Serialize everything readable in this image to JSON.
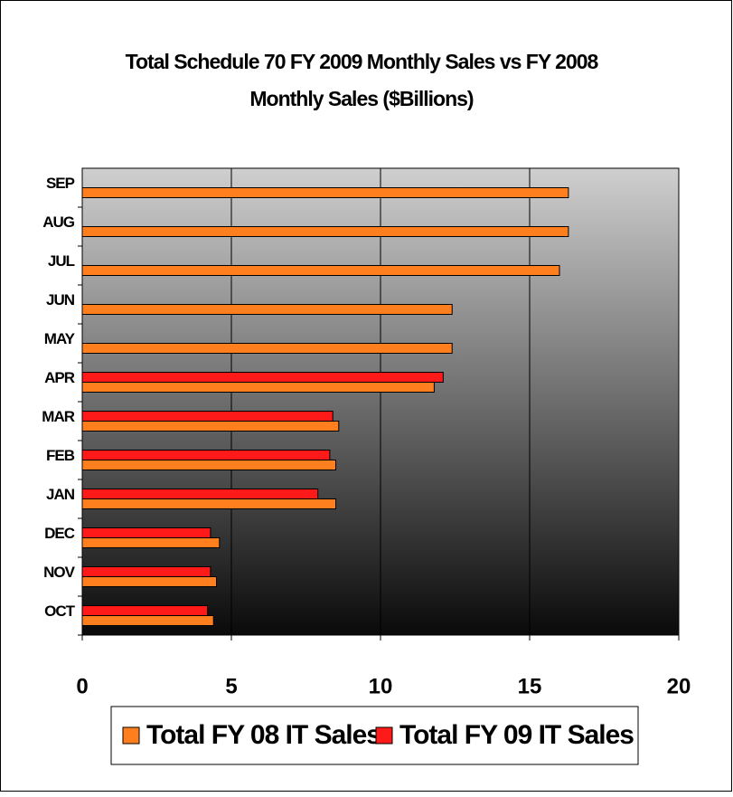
{
  "chart_data": {
    "type": "hbar",
    "title": "Total Schedule 70 FY 2009 Monthly Sales vs FY 2008",
    "subtitle": "Monthly Sales ($Billions)",
    "categories": [
      "OCT",
      "NOV",
      "DEC",
      "JAN",
      "FEB",
      "MAR",
      "APR",
      "MAY",
      "JUN",
      "JUL",
      "AUG",
      "SEP"
    ],
    "series": [
      {
        "name": "Total FY 08 IT Sales",
        "color": "#ff7f1e",
        "values": [
          4.4,
          4.5,
          4.6,
          8.5,
          8.5,
          8.6,
          11.8,
          12.4,
          12.4,
          16.0,
          16.3,
          16.3
        ]
      },
      {
        "name": "Total FY 09 IT Sales",
        "color": "#ff1a1a",
        "values": [
          4.2,
          4.3,
          4.3,
          7.9,
          8.3,
          8.4,
          12.1,
          null,
          null,
          null,
          null,
          null
        ]
      }
    ],
    "xlim": [
      0,
      20
    ],
    "xticks": [
      0,
      5,
      10,
      15,
      20
    ],
    "grid": true
  }
}
